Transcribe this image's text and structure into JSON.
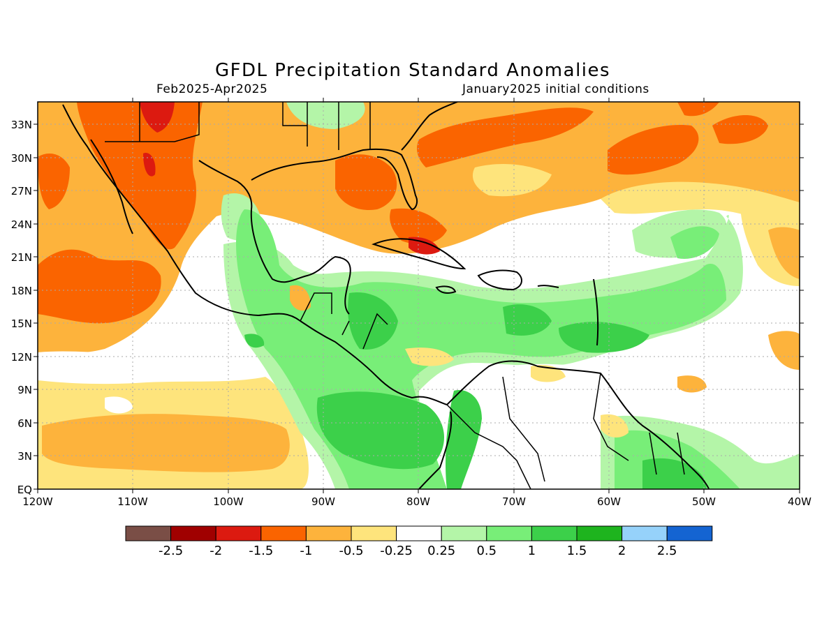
{
  "title": "GFDL Precipitation Standard Anomalies",
  "period": "Feb2025-Apr2025",
  "initial_conditions": "January2025 initial conditions",
  "colors": {
    "brown": "#7a4e46",
    "darkred": "#a00000",
    "red": "#dc1a10",
    "orange": "#fa6400",
    "lightorange": "#fdb33c",
    "yellow": "#fee47c",
    "white": "#ffffff",
    "palegreen": "#b4f5a8",
    "lightgreen": "#78ee78",
    "green": "#3cd04a",
    "darkgreen": "#1eb41e",
    "lightblue": "#96d2fa",
    "blue": "#1464d2"
  },
  "lat_ticks": [
    "33N",
    "30N",
    "27N",
    "24N",
    "21N",
    "18N",
    "15N",
    "12N",
    "9N",
    "6N",
    "3N",
    "EQ"
  ],
  "lon_ticks": [
    "120W",
    "110W",
    "100W",
    "90W",
    "80W",
    "70W",
    "60W",
    "50W",
    "40W"
  ],
  "colorbar": {
    "labels": [
      "-2.5",
      "-2",
      "-1.5",
      "-1",
      "-0.5",
      "-0.25",
      "0.25",
      "0.5",
      "1",
      "1.5",
      "2",
      "2.5"
    ],
    "colors": [
      "#7a4e46",
      "#a00000",
      "#dc1a10",
      "#fa6400",
      "#fdb33c",
      "#fee47c",
      "#ffffff",
      "#b4f5a8",
      "#78ee78",
      "#3cd04a",
      "#1eb41e",
      "#96d2fa",
      "#1464d2"
    ]
  }
}
